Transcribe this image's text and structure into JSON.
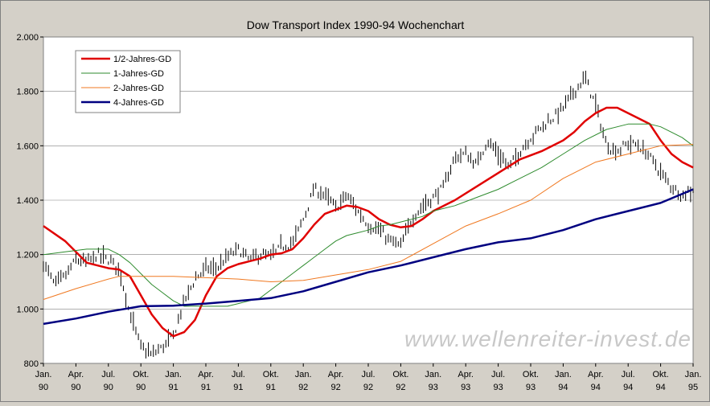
{
  "chart_data": {
    "type": "line",
    "title": "Dow Transport Index 1990-94 Wochenchart",
    "xlabel": "",
    "ylabel": "",
    "x_range": [
      "1990-01",
      "1995-01"
    ],
    "ylim": [
      800,
      2000
    ],
    "yticks": [
      800,
      1000,
      1200,
      1400,
      1600,
      1800,
      2000
    ],
    "ytick_labels": [
      "800",
      "1.000",
      "1.200",
      "1.400",
      "1.600",
      "1.800",
      "2.000"
    ],
    "xticks": [
      {
        "x": "1990-01",
        "month": "Jan.",
        "year": "90"
      },
      {
        "x": "1990-04",
        "month": "Apr.",
        "year": "90"
      },
      {
        "x": "1990-07",
        "month": "Jul.",
        "year": "90"
      },
      {
        "x": "1990-10",
        "month": "Okt.",
        "year": "90"
      },
      {
        "x": "1991-01",
        "month": "Jan.",
        "year": "91"
      },
      {
        "x": "1991-04",
        "month": "Apr.",
        "year": "91"
      },
      {
        "x": "1991-07",
        "month": "Jul.",
        "year": "91"
      },
      {
        "x": "1991-10",
        "month": "Okt.",
        "year": "91"
      },
      {
        "x": "1992-01",
        "month": "Jan.",
        "year": "92"
      },
      {
        "x": "1992-04",
        "month": "Apr.",
        "year": "92"
      },
      {
        "x": "1992-07",
        "month": "Jul.",
        "year": "92"
      },
      {
        "x": "1992-10",
        "month": "Okt.",
        "year": "92"
      },
      {
        "x": "1993-01",
        "month": "Jan.",
        "year": "93"
      },
      {
        "x": "1993-04",
        "month": "Apr.",
        "year": "93"
      },
      {
        "x": "1993-07",
        "month": "Jul.",
        "year": "93"
      },
      {
        "x": "1993-10",
        "month": "Okt.",
        "year": "93"
      },
      {
        "x": "1994-01",
        "month": "Jan.",
        "year": "94"
      },
      {
        "x": "1994-04",
        "month": "Apr.",
        "year": "94"
      },
      {
        "x": "1994-07",
        "month": "Jul.",
        "year": "94"
      },
      {
        "x": "1994-10",
        "month": "Okt.",
        "year": "94"
      },
      {
        "x": "1995-01",
        "month": "Jan.",
        "year": "95"
      }
    ],
    "grid": "horizontal",
    "legend_position": "top-left",
    "watermark": "www.wellenreiter-invest.de",
    "price": {
      "type": "weekly-bars",
      "color": "#000000",
      "x": [
        "1990-01",
        "1990-02",
        "1990-03",
        "1990-04",
        "1990-05",
        "1990-06",
        "1990-07",
        "1990-08",
        "1990-09",
        "1990-10",
        "1990-11",
        "1990-12",
        "1991-01",
        "1991-02",
        "1991-03",
        "1991-04",
        "1991-05",
        "1991-06",
        "1991-07",
        "1991-08",
        "1991-09",
        "1991-10",
        "1991-11",
        "1991-12",
        "1992-01",
        "1992-02",
        "1992-03",
        "1992-04",
        "1992-05",
        "1992-06",
        "1992-07",
        "1992-08",
        "1992-09",
        "1992-10",
        "1992-11",
        "1992-12",
        "1993-01",
        "1993-02",
        "1993-03",
        "1993-04",
        "1993-05",
        "1993-06",
        "1993-07",
        "1993-08",
        "1993-09",
        "1993-10",
        "1993-11",
        "1993-12",
        "1994-01",
        "1994-02",
        "1994-03",
        "1994-04",
        "1994-05",
        "1994-06",
        "1994-07",
        "1994-08",
        "1994-09",
        "1994-10",
        "1994-11",
        "1994-12",
        "1995-01"
      ],
      "close": [
        1170,
        1090,
        1120,
        1180,
        1170,
        1200,
        1180,
        1150,
        980,
        860,
        830,
        860,
        900,
        1030,
        1110,
        1150,
        1150,
        1190,
        1220,
        1180,
        1200,
        1190,
        1230,
        1240,
        1330,
        1440,
        1420,
        1370,
        1420,
        1360,
        1310,
        1290,
        1250,
        1230,
        1330,
        1380,
        1410,
        1450,
        1560,
        1570,
        1530,
        1620,
        1570,
        1520,
        1580,
        1630,
        1670,
        1700,
        1740,
        1800,
        1850,
        1750,
        1600,
        1580,
        1610,
        1600,
        1560,
        1500,
        1450,
        1420,
        1440
      ]
    },
    "series": [
      {
        "name": "1/2-Jahres-GD",
        "color": "#e00000",
        "width": 2.5,
        "x": [
          "1990-01",
          "1990-03",
          "1990-05",
          "1990-07",
          "1990-08",
          "1990-09",
          "1990-10",
          "1990-11",
          "1990-12",
          "1991-01",
          "1991-02",
          "1991-03",
          "1991-04",
          "1991-05",
          "1991-06",
          "1991-07",
          "1991-08",
          "1991-09",
          "1991-10",
          "1991-11",
          "1991-12",
          "1992-01",
          "1992-02",
          "1992-03",
          "1992-04",
          "1992-05",
          "1992-06",
          "1992-07",
          "1992-08",
          "1992-09",
          "1992-10",
          "1992-11",
          "1992-12",
          "1993-01",
          "1993-03",
          "1993-05",
          "1993-07",
          "1993-09",
          "1993-11",
          "1994-01",
          "1994-02",
          "1994-03",
          "1994-04",
          "1994-05",
          "1994-06",
          "1994-07",
          "1994-08",
          "1994-09",
          "1994-10",
          "1994-11",
          "1994-12",
          "1995-01"
        ],
        "values": [
          1305,
          1250,
          1170,
          1150,
          1145,
          1120,
          1050,
          980,
          930,
          900,
          915,
          960,
          1050,
          1120,
          1150,
          1165,
          1175,
          1185,
          1200,
          1205,
          1220,
          1260,
          1310,
          1350,
          1365,
          1380,
          1375,
          1360,
          1330,
          1310,
          1300,
          1305,
          1330,
          1360,
          1400,
          1450,
          1500,
          1550,
          1580,
          1620,
          1650,
          1690,
          1720,
          1740,
          1740,
          1720,
          1700,
          1680,
          1620,
          1570,
          1540,
          1520
        ]
      },
      {
        "name": "1-Jahres-GD",
        "color": "#2e8b2e",
        "width": 1,
        "x": [
          "1990-01",
          "1990-03",
          "1990-05",
          "1990-07",
          "1990-08",
          "1990-09",
          "1990-10",
          "1990-11",
          "1990-12",
          "1991-01",
          "1991-02",
          "1991-03",
          "1991-04",
          "1991-05",
          "1991-06",
          "1991-07",
          "1991-08",
          "1991-09",
          "1991-10",
          "1991-11",
          "1991-12",
          "1992-01",
          "1992-02",
          "1992-03",
          "1992-04",
          "1992-05",
          "1992-06",
          "1992-07",
          "1992-08",
          "1992-09",
          "1992-10",
          "1992-11",
          "1992-12",
          "1993-01",
          "1993-03",
          "1993-05",
          "1993-07",
          "1993-09",
          "1993-11",
          "1994-01",
          "1994-03",
          "1994-05",
          "1994-07",
          "1994-09",
          "1994-10",
          "1994-11",
          "1994-12",
          "1995-01"
        ],
        "values": [
          1200,
          1210,
          1220,
          1220,
          1200,
          1170,
          1130,
          1090,
          1060,
          1030,
          1010,
          1010,
          1010,
          1010,
          1010,
          1020,
          1030,
          1040,
          1070,
          1100,
          1130,
          1160,
          1190,
          1220,
          1250,
          1270,
          1280,
          1290,
          1305,
          1310,
          1320,
          1330,
          1340,
          1360,
          1380,
          1410,
          1440,
          1480,
          1520,
          1570,
          1620,
          1660,
          1680,
          1680,
          1670,
          1650,
          1630,
          1600
        ]
      },
      {
        "name": "2-Jahres-GD",
        "color": "#f07820",
        "width": 1,
        "x": [
          "1990-01",
          "1990-04",
          "1990-07",
          "1990-08",
          "1990-09",
          "1990-10",
          "1990-11",
          "1990-12",
          "1991-01",
          "1991-04",
          "1991-07",
          "1991-10",
          "1992-01",
          "1992-04",
          "1992-07",
          "1992-10",
          "1993-01",
          "1993-04",
          "1993-07",
          "1993-10",
          "1994-01",
          "1994-04",
          "1994-07",
          "1994-10",
          "1995-01"
        ],
        "values": [
          1035,
          1075,
          1110,
          1120,
          1120,
          1120,
          1120,
          1120,
          1120,
          1115,
          1110,
          1100,
          1105,
          1125,
          1145,
          1175,
          1240,
          1305,
          1350,
          1400,
          1480,
          1540,
          1570,
          1600,
          1605
        ]
      },
      {
        "name": "4-Jahres-GD",
        "color": "#000080",
        "width": 2.5,
        "x": [
          "1990-01",
          "1990-04",
          "1990-07",
          "1990-10",
          "1991-01",
          "1991-04",
          "1991-07",
          "1991-10",
          "1992-01",
          "1992-04",
          "1992-07",
          "1992-10",
          "1993-01",
          "1993-04",
          "1993-07",
          "1993-10",
          "1994-01",
          "1994-04",
          "1994-07",
          "1994-10",
          "1995-01"
        ],
        "values": [
          945,
          965,
          990,
          1010,
          1012,
          1020,
          1030,
          1040,
          1065,
          1100,
          1135,
          1160,
          1190,
          1220,
          1245,
          1260,
          1290,
          1330,
          1360,
          1390,
          1440
        ]
      }
    ]
  }
}
